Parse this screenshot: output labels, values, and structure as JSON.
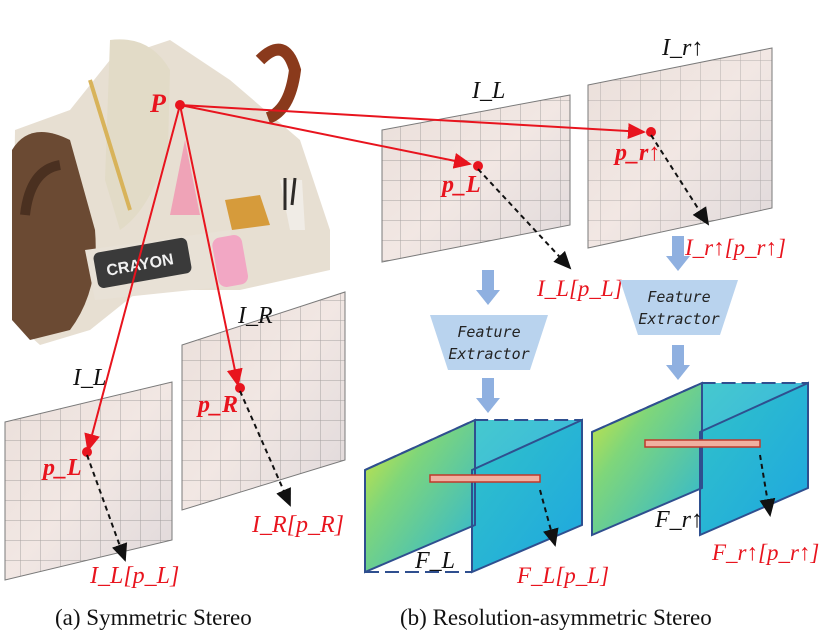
{
  "colors": {
    "accent_red": "#e8141e",
    "arrow_blue": "#8fb0e0",
    "extractor_fill": "#b9d3ee",
    "dash_frame": "#2f4f8f",
    "grid_line": "#6b6b6b"
  },
  "left_panel": {
    "point_label": "P",
    "image_left_label": "I_L",
    "image_right_label": "I_R",
    "point_left_label": "p_L",
    "point_right_label": "p_R",
    "sample_left_label": "I_L[p_L]",
    "sample_right_label": "I_R[p_R]",
    "caption": "(a) Symmetric Stereo",
    "crayon_text": "CRAYON"
  },
  "right_panel": {
    "image_left_label": "I_L",
    "image_right_label": "I_r↑",
    "point_left_label": "p_L",
    "point_right_label": "p_r↑",
    "sample_left_label": "I_L[p_L]",
    "sample_right_label": "I_r↑[p_r↑]",
    "feature_extractor_line1": "Feature",
    "feature_extractor_line2": "Extractor",
    "feature_left_label": "F_L",
    "feature_right_label": "F_r↑",
    "feature_sample_left": "F_L[p_L]",
    "feature_sample_right": "F_r↑[p_r↑]",
    "caption": "(b) Resolution-asymmetric Stereo"
  }
}
